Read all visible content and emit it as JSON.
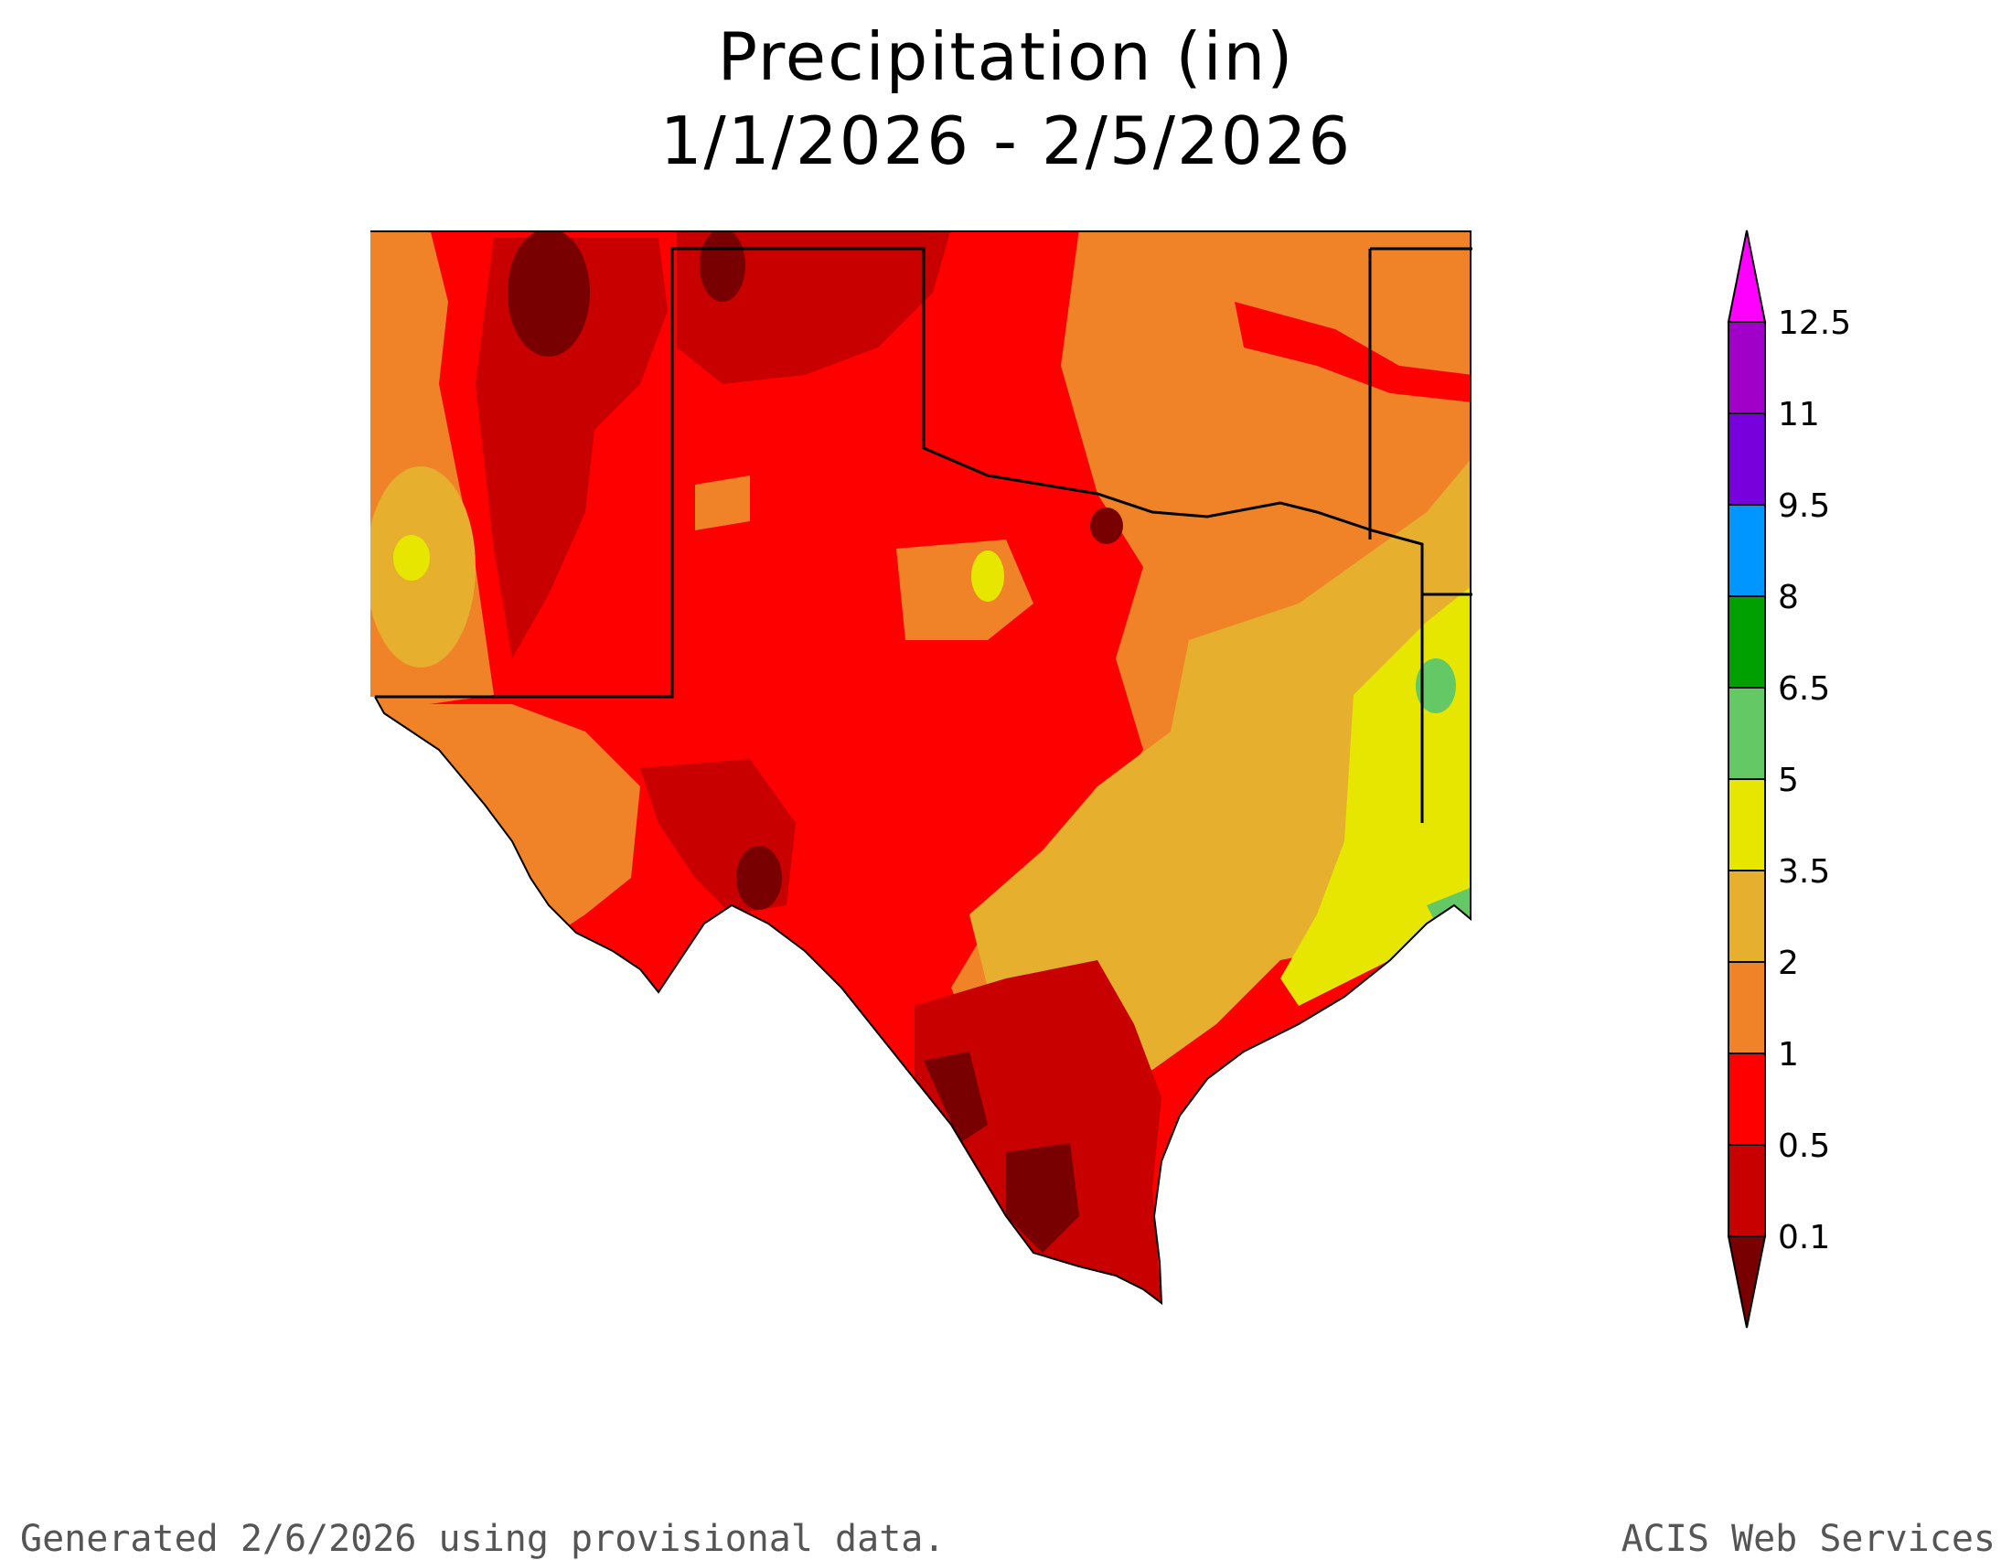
{
  "title": {
    "line1": "Precipitation (in)",
    "line2": "1/1/2026 - 2/5/2026"
  },
  "legend": {
    "breaks": [
      "12.5",
      "11",
      "9.5",
      "8",
      "6.5",
      "5",
      "3.5",
      "2",
      "1",
      "0.5",
      "0.1"
    ],
    "colors": {
      "gt_12_5": "#ff00ff",
      "11_12_5": "#a000c8",
      "9_5_11": "#7800dc",
      "8_9_5": "#0096ff",
      "6_5_8": "#00a000",
      "5_6_5": "#64c864",
      "3_5_5": "#e6e600",
      "2_3_5": "#e6af2d",
      "1_2": "#f08228",
      "0_5_1": "#ff0000",
      "0_1_0_5": "#c80000",
      "lt_0_1": "#780000"
    }
  },
  "footer": {
    "left": "Generated 2/6/2026  using provisional data.",
    "right": "ACIS Web Services"
  }
}
